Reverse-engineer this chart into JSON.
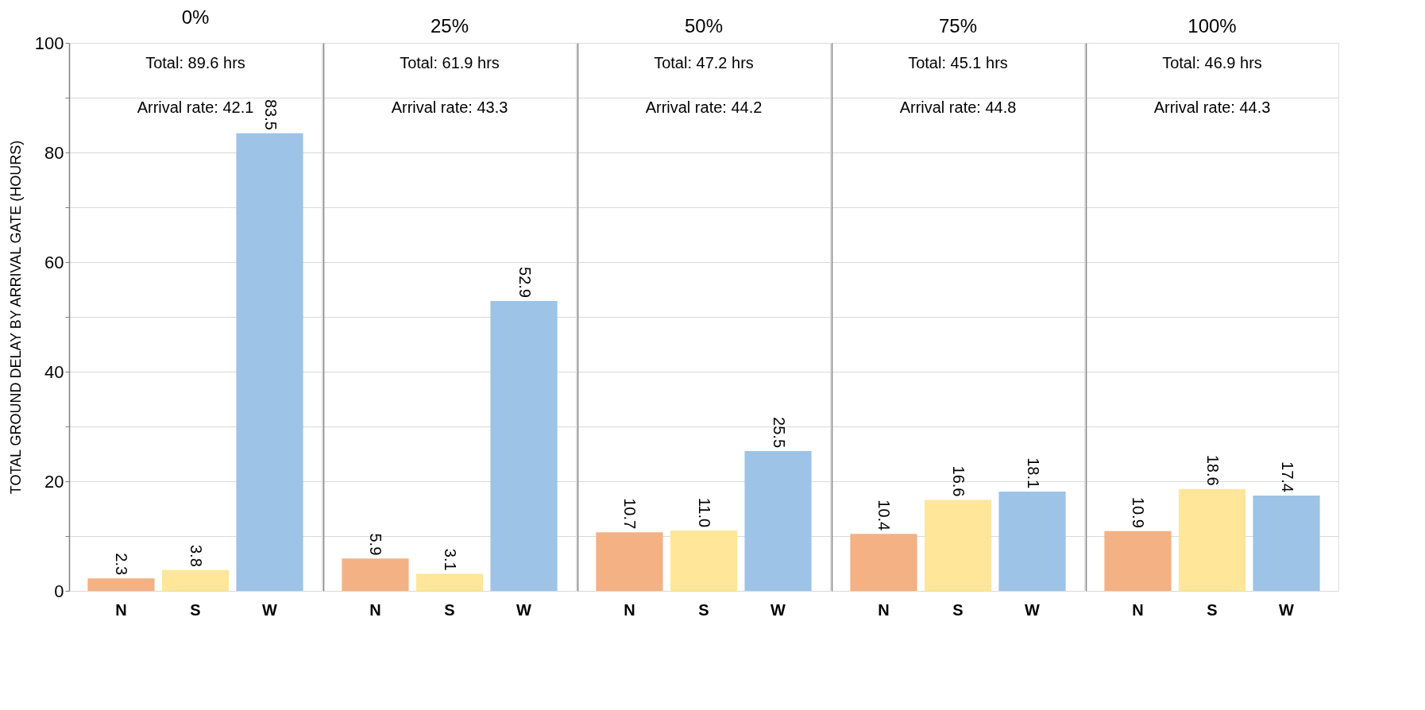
{
  "chart_data": [
    {
      "type": "bar",
      "title": "0%",
      "ylabel": "TOTAL GROUND DELAY BY ARRIVAL GATE  (HOURS)",
      "categories": [
        "N",
        "S",
        "W"
      ],
      "values": [
        2.3,
        3.8,
        83.5
      ],
      "colors": [
        "#f4b183",
        "#ffe699",
        "#9dc3e6"
      ],
      "ylim": [
        0,
        100
      ],
      "yticks": [
        0,
        {
          "value": 10,
          "label": null
        },
        20,
        {
          "value": 30,
          "label": null
        },
        40,
        {
          "value": 50,
          "label": null
        },
        60,
        {
          "value": 70,
          "label": null
        },
        80,
        {
          "value": 90,
          "label": null
        },
        100
      ],
      "grid": "y",
      "data_labels": true,
      "annotations": [
        "Total: 89.6 hrs",
        "Arrival rate: 42.1"
      ]
    },
    {
      "type": "bar",
      "title": "25%",
      "categories": [
        "N",
        "S",
        "W"
      ],
      "values": [
        5.9,
        3.1,
        52.9
      ],
      "colors": [
        "#f4b183",
        "#ffe699",
        "#9dc3e6"
      ],
      "ylim": [
        0,
        100
      ],
      "yticks": [
        0,
        {
          "value": 10,
          "label": null
        },
        20,
        {
          "value": 30,
          "label": null
        },
        40,
        {
          "value": 50,
          "label": null
        },
        60,
        {
          "value": 70,
          "label": null
        },
        80,
        {
          "value": 90,
          "label": null
        },
        100
      ],
      "grid": "y",
      "tick_labels": "x",
      "data_labels": true,
      "annotations": [
        "Total: 61.9 hrs",
        "Arrival rate: 43.3"
      ]
    },
    {
      "type": "bar",
      "title": "50%",
      "categories": [
        "N",
        "S",
        "W"
      ],
      "values": [
        10.7,
        11.0,
        25.5
      ],
      "value_labels": [
        "10.7",
        "11.0",
        "25.5"
      ],
      "colors": [
        "#f4b183",
        "#ffe699",
        "#9dc3e6"
      ],
      "ylim": [
        0,
        100
      ],
      "yticks": [
        0,
        {
          "value": 10,
          "label": null
        },
        20,
        {
          "value": 30,
          "label": null
        },
        40,
        {
          "value": 50,
          "label": null
        },
        60,
        {
          "value": 70,
          "label": null
        },
        80,
        {
          "value": 90,
          "label": null
        },
        100
      ],
      "grid": "y",
      "tick_labels": "x",
      "data_labels": true,
      "annotations": [
        "Total: 47.2 hrs",
        "Arrival rate: 44.2"
      ]
    },
    {
      "type": "bar",
      "title": "75%",
      "categories": [
        "N",
        "S",
        "W"
      ],
      "values": [
        10.4,
        16.6,
        18.1
      ],
      "colors": [
        "#f4b183",
        "#ffe699",
        "#9dc3e6"
      ],
      "ylim": [
        0,
        100
      ],
      "yticks": [
        0,
        {
          "value": 10,
          "label": null
        },
        20,
        {
          "value": 30,
          "label": null
        },
        40,
        {
          "value": 50,
          "label": null
        },
        60,
        {
          "value": 70,
          "label": null
        },
        80,
        {
          "value": 90,
          "label": null
        },
        100
      ],
      "grid": "y",
      "tick_labels": "x",
      "data_labels": true,
      "annotations": [
        "Total: 45.1 hrs",
        "Arrival rate: 44.8"
      ]
    },
    {
      "type": "bar",
      "title": "100%",
      "categories": [
        "N",
        "S",
        "W"
      ],
      "values": [
        10.9,
        18.6,
        17.4
      ],
      "colors": [
        "#f4b183",
        "#ffe699",
        "#9dc3e6"
      ],
      "ylim": [
        0,
        100
      ],
      "yticks": [
        0,
        {
          "value": 10,
          "label": null
        },
        20,
        {
          "value": 30,
          "label": null
        },
        40,
        {
          "value": 50,
          "label": null
        },
        60,
        {
          "value": 70,
          "label": null
        },
        80,
        {
          "value": 90,
          "label": null
        },
        100
      ],
      "grid": "y",
      "tick_labels": "x",
      "data_labels": true,
      "annotations": [
        "Total: 46.9 hrs",
        "Arrival rate: 44.3"
      ]
    }
  ]
}
